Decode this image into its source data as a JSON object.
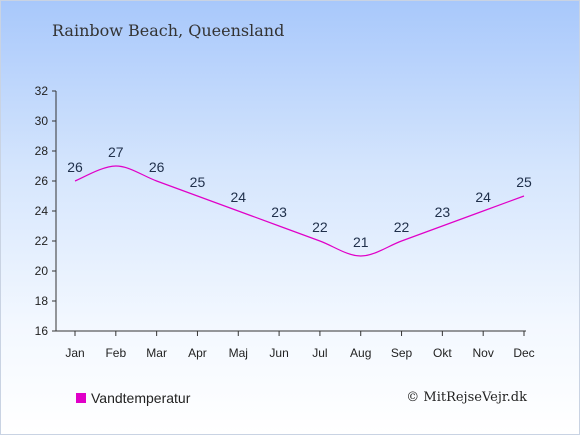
{
  "chart_data": {
    "type": "line",
    "title": "Rainbow Beach, Queensland",
    "categories": [
      "Jan",
      "Feb",
      "Mar",
      "Apr",
      "Maj",
      "Jun",
      "Jul",
      "Aug",
      "Sep",
      "Okt",
      "Nov",
      "Dec"
    ],
    "series": [
      {
        "name": "Vandtemperatur",
        "values": [
          26,
          27,
          26,
          25,
          24,
          23,
          22,
          21,
          22,
          23,
          24,
          25
        ],
        "color": "#e000c8"
      }
    ],
    "ylim": [
      16,
      32
    ],
    "yticks": [
      16,
      18,
      20,
      22,
      24,
      26,
      28,
      30,
      32
    ],
    "grid": false,
    "legend": "bottom-left"
  },
  "credit": "© MitRejseVejr.dk"
}
